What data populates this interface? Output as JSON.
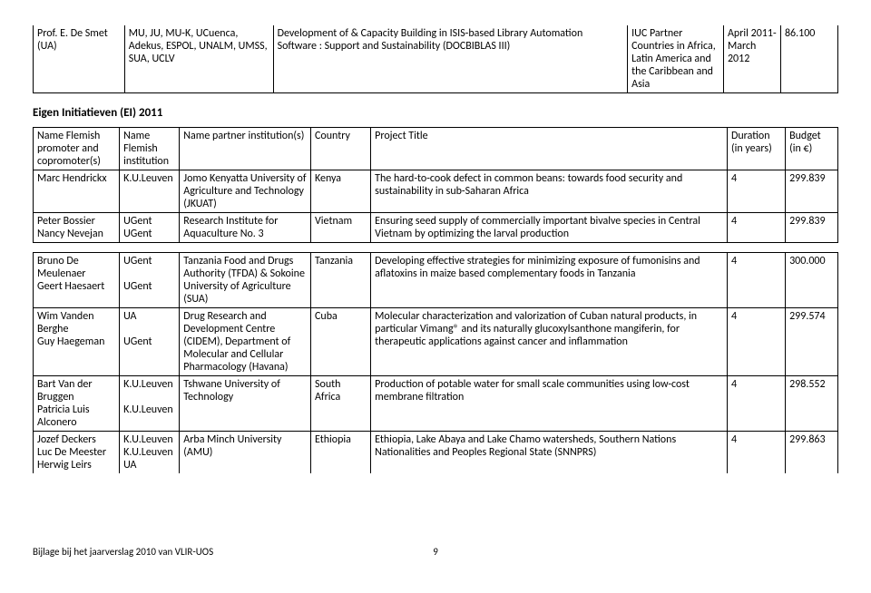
{
  "top_table": {
    "col_widths": [
      "80px",
      "130px",
      "310px",
      "84px",
      "50px",
      "50px"
    ],
    "row": {
      "promoter": "Prof. E. De Smet (UA)",
      "institution": "MU, JU, MU-K, UCuenca, Adekus, ESPOL, UNALM, UMSS, SUA, UCLV",
      "title": "Development of & Capacity Building in ISIS-based Library Automation Software : Support and Sustainability (DOCBIBLAS III)",
      "country": "IUC Partner Countries in Africa, Latin America and the Caribbean and Asia",
      "dates": "April 2011- March 2012",
      "budget": "86.100"
    }
  },
  "section_heading": "Eigen Initiatieven (EI) 2011",
  "table1": {
    "col_widths": [
      "92px",
      "64px",
      "140px",
      "64px",
      "380px",
      "62px",
      "56px"
    ],
    "head": {
      "c0": "Name Flemish promoter and copromoter(s)",
      "c1": "Name Flemish institution",
      "c2": "Name partner institution(s)",
      "c3": "Country",
      "c4": "Project Title",
      "c5": "Duration (in years)",
      "c6": "Budget (in €)"
    },
    "rows": [
      {
        "c0": "Marc Hendrickx",
        "c1": "K.U.Leuven",
        "c2": "Jomo Kenyatta University of Agriculture and Technology (JKUAT)",
        "c3": "Kenya",
        "c4": "The hard-to-cook defect in common beans: towards food security and sustainability in sub-Saharan Africa",
        "c5": "4",
        "c6": "299.839"
      },
      {
        "c0": "Peter Bossier\nNancy Nevejan",
        "c1": "UGent\nUGent",
        "c2": "Research Institute for Aquaculture No. 3",
        "c3": "Vietnam",
        "c4": "Ensuring seed supply of commercially important bivalve species in Central Vietnam by optimizing the larval production",
        "c5": "4",
        "c6": "299.839"
      }
    ]
  },
  "table2": {
    "col_widths": [
      "92px",
      "64px",
      "140px",
      "64px",
      "380px",
      "62px",
      "56px"
    ],
    "rows": [
      {
        "c0": "Bruno De Meulenaer\nGeert Haesaert",
        "c1": "UGent\n\nUGent",
        "c2": "Tanzania Food and Drugs Authority (TFDA) & Sokoine University of Agriculture (SUA)",
        "c3": "Tanzania",
        "c4": "Developing effective strategies for minimizing exposure of fumonisins and aflatoxins in maize based complementary foods in Tanzania",
        "c5": "4",
        "c6": "300.000"
      },
      {
        "c0": "Wim Vanden Berghe\nGuy Haegeman",
        "c1": "UA\n\nUGent",
        "c2": "Drug Research and Development Centre (CIDEM), Department of Molecular and Cellular Pharmacology (Havana)",
        "c3": "Cuba",
        "c4": "Molecular characterization and valorization of Cuban natural products, in particular Vimang® and its naturally glucoxylsanthone mangiferin, for therapeutic applications against cancer and inflammation",
        "c5": "4",
        "c6": "299.574"
      },
      {
        "c0": "Bart Van der Bruggen\nPatricia Luis Alconero",
        "c1": "K.U.Leuven\n\nK.U.Leuven",
        "c2": "Tshwane University of Technology",
        "c3": "South Africa",
        "c4": "Production of potable water for small scale communities using low-cost membrane filtration",
        "c5": "4",
        "c6": "298.552"
      },
      {
        "c0": "Jozef Deckers\nLuc De Meester\nHerwig Leirs",
        "c1": "K.U.Leuven\nK.U.Leuven\nUA",
        "c2": "Arba Minch University (AMU)",
        "c3": "Ethiopia",
        "c4": "Ethiopia, Lake Abaya and Lake Chamo watersheds, Southern Nations Nationalities and Peoples Regional State (SNNPRS)",
        "c5": "4",
        "c6": "299.863"
      }
    ]
  },
  "footer_text": "Bijlage bij het jaarverslag 2010 van VLIR-UOS",
  "page_number": "9"
}
